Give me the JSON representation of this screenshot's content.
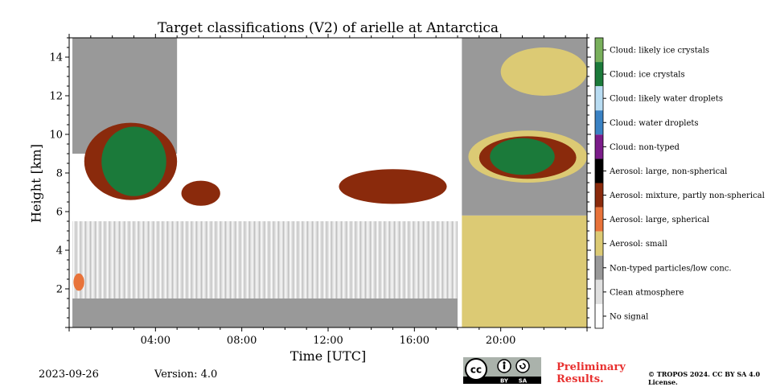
{
  "chart_data": {
    "type": "heatmap",
    "title": "Target classifications (V2) of arielle at Antarctica",
    "xlabel": "Time [UTC]",
    "ylabel": "Height [km]",
    "xlim": [
      0,
      24
    ],
    "ylim": [
      0,
      15
    ],
    "x_ticks": [
      {
        "value": 4,
        "label": "04:00"
      },
      {
        "value": 8,
        "label": "08:00"
      },
      {
        "value": 12,
        "label": "12:00"
      },
      {
        "value": 16,
        "label": "16:00"
      },
      {
        "value": 20,
        "label": "20:00"
      }
    ],
    "y_ticks": [
      {
        "value": 2,
        "label": "2"
      },
      {
        "value": 4,
        "label": "4"
      },
      {
        "value": 6,
        "label": "6"
      },
      {
        "value": 8,
        "label": "8"
      },
      {
        "value": 10,
        "label": "10"
      },
      {
        "value": 12,
        "label": "12"
      },
      {
        "value": 14,
        "label": "14"
      }
    ],
    "legend_placement": "right colorbar",
    "classes": [
      {
        "label": "Cloud: likely ice crystals",
        "color": "#79b05c"
      },
      {
        "label": "Cloud: ice crystals",
        "color": "#1b7a3a"
      },
      {
        "label": "Cloud: likely water droplets",
        "color": "#b8dcf2"
      },
      {
        "label": "Cloud: water droplets",
        "color": "#3a82c4"
      },
      {
        "label": "Cloud: non-typed",
        "color": "#7b1c8a"
      },
      {
        "label": "Aerosol: large, non-spherical",
        "color": "#000000"
      },
      {
        "label": "Aerosol: mixture, partly non-spherical",
        "color": "#8a2a0c"
      },
      {
        "label": "Aerosol: large, spherical",
        "color": "#e8733a"
      },
      {
        "label": "Aerosol: small",
        "color": "#dcca74"
      },
      {
        "label": "Non-typed particles/low conc.",
        "color": "#999999"
      },
      {
        "label": "Clean atmosphere",
        "color": "#e0e0e0"
      },
      {
        "label": "No signal",
        "color": "#ffffff"
      }
    ],
    "regions": [
      {
        "class": "Non-typed particles/low conc.",
        "x": [
          0.15,
          18.0
        ],
        "y": [
          0,
          1.5
        ]
      },
      {
        "class": "Clean atmosphere",
        "x": [
          0.15,
          18.0
        ],
        "y": [
          1.5,
          5.5
        ]
      },
      {
        "class": "Non-typed particles/low conc.",
        "x": [
          0.15,
          5.0
        ],
        "y": [
          9.0,
          15.0
        ]
      },
      {
        "class": "Aerosol: small",
        "x": [
          18.2,
          24.0
        ],
        "y": [
          0,
          5.8
        ]
      },
      {
        "class": "Non-typed particles/low conc.",
        "x": [
          18.2,
          24.0
        ],
        "y": [
          5.8,
          15.0
        ]
      },
      {
        "class": "Aerosol: mixture, partly non-spherical",
        "x": [
          0.7,
          5.0
        ],
        "y": [
          6.6,
          10.6
        ]
      },
      {
        "class": "Cloud: ice crystals",
        "x": [
          1.5,
          4.5
        ],
        "y": [
          6.8,
          10.4
        ]
      },
      {
        "class": "Aerosol: mixture, partly non-spherical",
        "x": [
          5.2,
          7.0
        ],
        "y": [
          6.3,
          7.6
        ]
      },
      {
        "class": "Aerosol: mixture, partly non-spherical",
        "x": [
          12.5,
          17.5
        ],
        "y": [
          6.4,
          8.2
        ]
      },
      {
        "class": "Aerosol: small",
        "x": [
          18.5,
          24.0
        ],
        "y": [
          7.5,
          10.2
        ]
      },
      {
        "class": "Aerosol: mixture, partly non-spherical",
        "x": [
          19.0,
          23.5
        ],
        "y": [
          7.7,
          9.9
        ]
      },
      {
        "class": "Cloud: ice crystals",
        "x": [
          19.5,
          22.5
        ],
        "y": [
          7.9,
          9.8
        ]
      },
      {
        "class": "Aerosol: small",
        "x": [
          20.0,
          24.0
        ],
        "y": [
          12.0,
          14.5
        ]
      },
      {
        "class": "Aerosol: large, spherical",
        "x": [
          0.2,
          0.7
        ],
        "y": [
          1.9,
          2.8
        ]
      }
    ]
  },
  "footer": {
    "date": "2023-09-26",
    "version": "Version: 4.0",
    "preliminary": "Preliminary Results.",
    "copyright": "© TROPOS 2024. CC BY SA 4.0 License.",
    "cc_badge_text": [
      "BY",
      "SA"
    ]
  }
}
